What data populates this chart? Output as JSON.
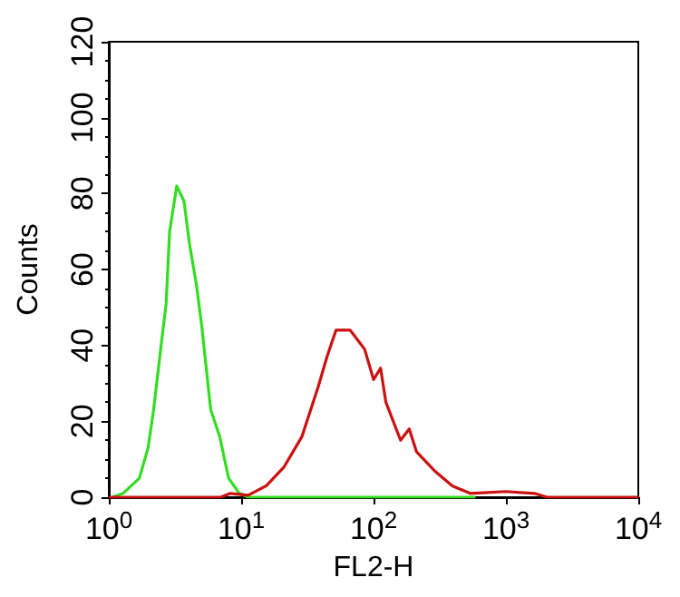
{
  "chart_data": {
    "type": "line",
    "xlabel": "FL2-H",
    "ylabel": "Counts",
    "log": "x",
    "xlim": [
      1,
      10000
    ],
    "xticks": [
      {
        "value": 1,
        "label": "10$^{0}$"
      },
      {
        "value": 10,
        "label": "10$^{1}$"
      },
      {
        "value": 100,
        "label": "10$^{2}$"
      },
      {
        "value": 1000,
        "label": "10$^{3}$"
      },
      {
        "value": 10000,
        "label": "10$^{4}$"
      }
    ],
    "ylim": [
      0,
      120
    ],
    "yticks": [
      0,
      20,
      40,
      60,
      80,
      100,
      120
    ],
    "marker": "none",
    "line_style": "solid",
    "series": [
      {
        "color": "#33dd22",
        "x": [
          1.06,
          1.28,
          1.7,
          1.98,
          2.18,
          2.39,
          2.71,
          2.88,
          3.26,
          3.7,
          4.06,
          4.59,
          5.04,
          5.89,
          6.88,
          8.04,
          9.7,
          11.3,
          590
        ],
        "values": [
          0,
          1,
          5,
          13,
          23,
          35,
          51,
          70,
          82,
          78,
          67,
          56,
          45,
          23,
          16,
          5,
          1,
          0,
          0
        ]
      },
      {
        "color": "#cc1111",
        "x": [
          1,
          7,
          8.3,
          11.3,
          15.5,
          21.1,
          28.8,
          38.1,
          44.5,
          52,
          66.7,
          85.6,
          100,
          113,
          124,
          160,
          186,
          211,
          288,
          393,
          537,
          1000,
          1640,
          2045,
          10000
        ],
        "values": [
          0,
          0,
          1,
          0.5,
          3,
          8,
          16,
          29,
          37,
          44,
          44,
          39,
          31,
          34,
          25,
          15,
          18,
          12,
          7,
          3,
          1,
          1.5,
          1,
          0,
          0
        ]
      }
    ]
  }
}
